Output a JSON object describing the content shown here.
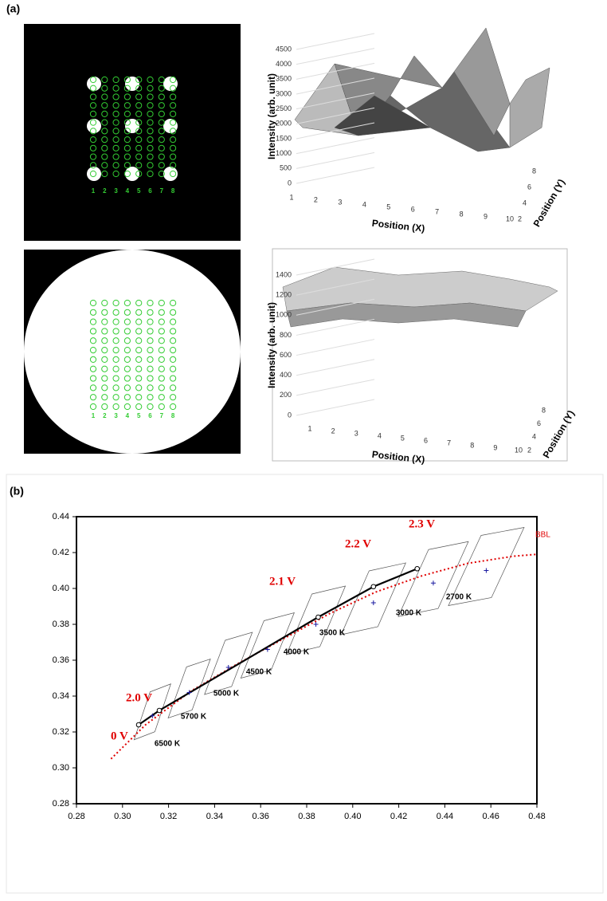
{
  "panel_a": {
    "label": "(a)",
    "columns": [
      "1",
      "2",
      "3",
      "4",
      "5",
      "6",
      "7",
      "8"
    ],
    "plots": [
      {
        "zlabel": "Intensity (arb. unit)",
        "xlabel": "Position (X)",
        "ylabel": "Position (Y)",
        "zticks": [
          0,
          500,
          1000,
          1500,
          2000,
          2500,
          3000,
          3500,
          4000,
          4500
        ],
        "xticks": [
          1,
          2,
          3,
          4,
          5,
          6,
          7,
          8,
          9,
          10
        ],
        "yticks": [
          2,
          4,
          6,
          8
        ]
      },
      {
        "zlabel": "Intensity (arb. unit)",
        "xlabel": "Position (X)",
        "ylabel": "Position (Y)",
        "zticks": [
          0,
          200,
          400,
          600,
          800,
          1000,
          1200,
          1400
        ],
        "xticks": [
          1,
          2,
          3,
          4,
          5,
          6,
          7,
          8,
          9,
          10
        ],
        "yticks": [
          2,
          4,
          6,
          8
        ]
      }
    ]
  },
  "chart_data": {
    "type": "line",
    "label": "(b)",
    "xlim": [
      0.28,
      0.48
    ],
    "xticks": [
      {
        "value": 0.28,
        "label": "0.28"
      },
      {
        "value": 0.3,
        "label": "0.30"
      },
      {
        "value": 0.32,
        "label": "0.32"
      },
      {
        "value": 0.34,
        "label": "0.34"
      },
      {
        "value": 0.36,
        "label": "0.36"
      },
      {
        "value": 0.38,
        "label": "0.38"
      },
      {
        "value": 0.4,
        "label": "0.40"
      },
      {
        "value": 0.42,
        "label": "0.42"
      },
      {
        "value": 0.44,
        "label": "0.44"
      },
      {
        "value": 0.46,
        "label": "0.46"
      },
      {
        "value": 0.48,
        "label": "0.48"
      }
    ],
    "ylim": [
      0.28,
      0.44
    ],
    "yticks": [
      {
        "value": 0.28,
        "label": "0.28"
      },
      {
        "value": 0.3,
        "label": "0.30"
      },
      {
        "value": 0.32,
        "label": "0.32"
      },
      {
        "value": 0.34,
        "label": "0.34"
      },
      {
        "value": 0.36,
        "label": "0.36"
      },
      {
        "value": 0.38,
        "label": "0.38"
      },
      {
        "value": 0.4,
        "label": "0.40"
      },
      {
        "value": 0.42,
        "label": "0.42"
      },
      {
        "value": 0.44,
        "label": "0.44"
      }
    ],
    "series": [
      {
        "name": "BBL",
        "color": "#e00000",
        "x": [
          0.295,
          0.31,
          0.33,
          0.35,
          0.37,
          0.39,
          0.41,
          0.43,
          0.45,
          0.47,
          0.48
        ],
        "values": [
          0.305,
          0.324,
          0.343,
          0.358,
          0.372,
          0.386,
          0.398,
          0.407,
          0.414,
          0.418,
          0.419
        ]
      },
      {
        "color": "#000000",
        "x": [
          0.307,
          0.316,
          0.385,
          0.409,
          0.428
        ],
        "values": [
          0.324,
          0.332,
          0.384,
          0.401,
          0.411
        ]
      },
      {
        "color": "#1a1aa0",
        "x": [
          0.313,
          0.329,
          0.346,
          0.363,
          0.384,
          0.409,
          0.435,
          0.458
        ],
        "values": [
          0.329,
          0.342,
          0.356,
          0.366,
          0.38,
          0.392,
          0.403,
          0.41
        ]
      }
    ],
    "cct_labels": [
      "6500 K",
      "5700 K",
      "5000 K",
      "4500 K",
      "4000 K",
      "3500 K",
      "3000 K",
      "2700 K"
    ],
    "voltage_labels": [
      "0 V",
      "2.0 V",
      "2.1 V",
      "2.2 V",
      "2.3 V"
    ]
  }
}
